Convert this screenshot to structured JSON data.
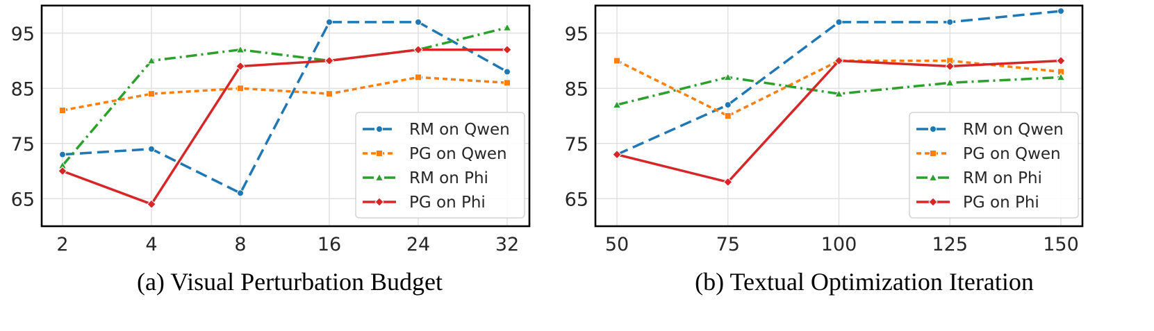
{
  "chart_data": [
    {
      "type": "line",
      "title": "",
      "caption": "(a) Visual Perturbation Budget",
      "xlabel": "",
      "ylabel": "",
      "categories": [
        "2",
        "4",
        "8",
        "16",
        "24",
        "32"
      ],
      "ylim": [
        60,
        100
      ],
      "yticks": [
        65,
        75,
        85,
        95
      ],
      "grid": true,
      "legend_position": "lower-right",
      "series": [
        {
          "name": "RM on Qwen",
          "values": [
            73,
            74,
            66,
            97,
            97,
            88
          ],
          "color": "#1f77b4",
          "marker": "circle",
          "dash": "dashed"
        },
        {
          "name": "PG on Qwen",
          "values": [
            81,
            84,
            85,
            84,
            87,
            86
          ],
          "color": "#ff7f0e",
          "marker": "square",
          "dash": "dotted"
        },
        {
          "name": "RM on Phi",
          "values": [
            71,
            90,
            92,
            90,
            92,
            96
          ],
          "color": "#2ca02c",
          "marker": "triangle",
          "dash": "dashdot"
        },
        {
          "name": "PG on Phi",
          "values": [
            70,
            64,
            89,
            90,
            92,
            92
          ],
          "color": "#d62728",
          "marker": "diamond",
          "dash": "solid"
        }
      ]
    },
    {
      "type": "line",
      "title": "",
      "caption": "(b) Textual Optimization Iteration",
      "xlabel": "",
      "ylabel": "",
      "categories": [
        "50",
        "75",
        "100",
        "125",
        "150"
      ],
      "ylim": [
        60,
        100
      ],
      "yticks": [
        65,
        75,
        85,
        95
      ],
      "grid": true,
      "legend_position": "lower-right",
      "series": [
        {
          "name": "RM on Qwen",
          "values": [
            73,
            82,
            97,
            97,
            99
          ],
          "color": "#1f77b4",
          "marker": "circle",
          "dash": "dashed"
        },
        {
          "name": "PG on Qwen",
          "values": [
            90,
            80,
            90,
            90,
            88
          ],
          "color": "#ff7f0e",
          "marker": "square",
          "dash": "dotted"
        },
        {
          "name": "RM on Phi",
          "values": [
            82,
            87,
            84,
            86,
            87
          ],
          "color": "#2ca02c",
          "marker": "triangle",
          "dash": "dashdot"
        },
        {
          "name": "PG on Phi",
          "values": [
            73,
            68,
            90,
            89,
            90
          ],
          "color": "#d62728",
          "marker": "diamond",
          "dash": "solid"
        }
      ]
    }
  ]
}
